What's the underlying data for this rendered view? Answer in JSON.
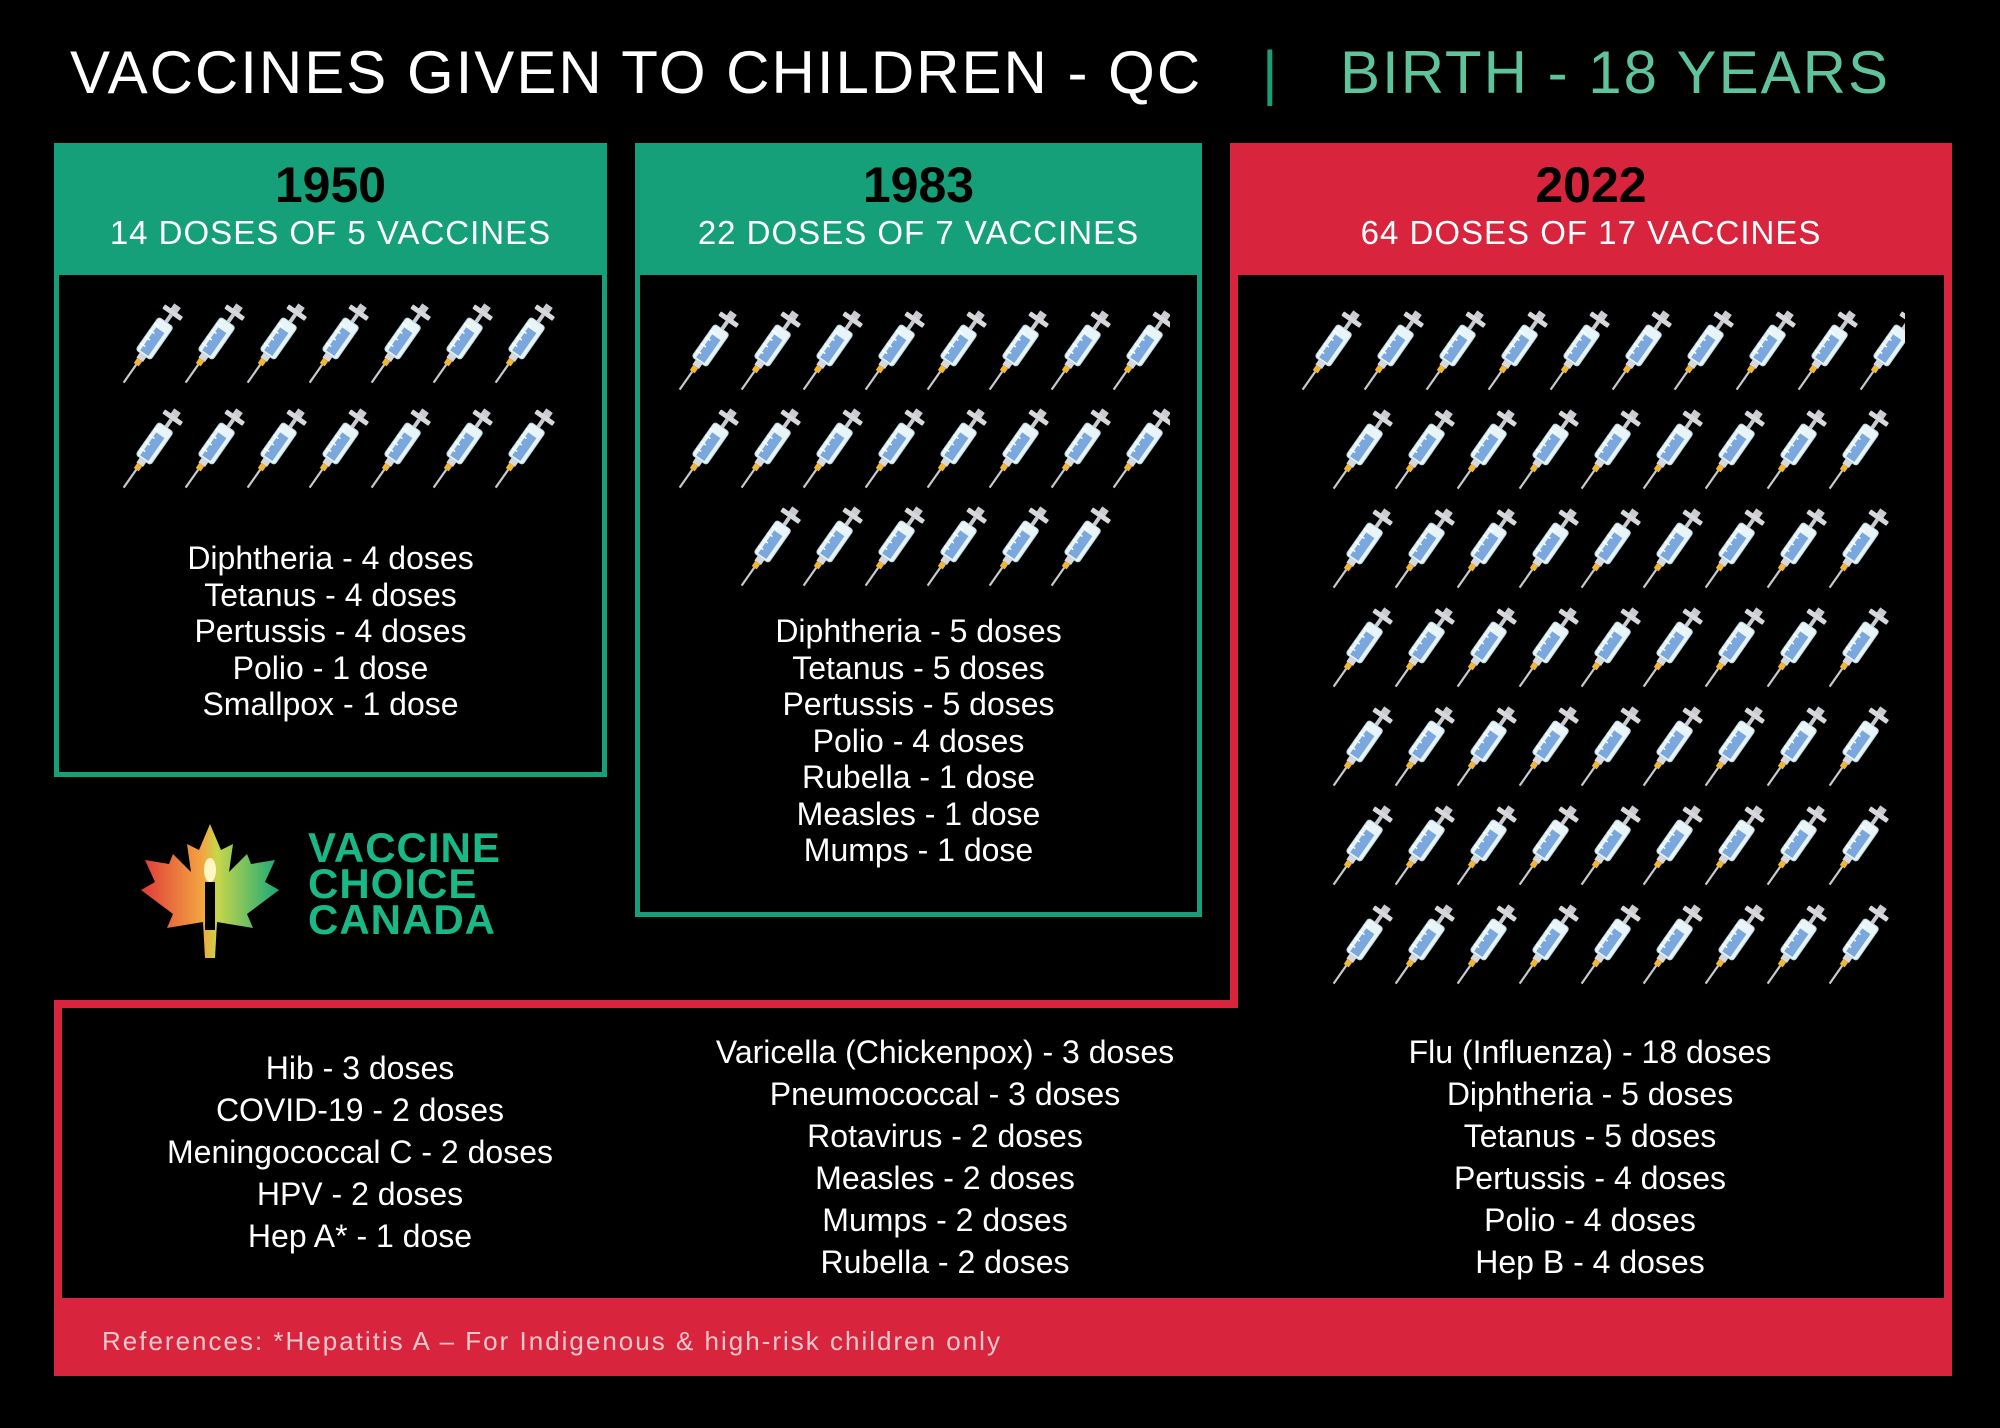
{
  "header": {
    "title": "VACCINES GIVEN TO CHILDREN - QC",
    "separator": "|",
    "subtitle": "BIRTH - 18 YEARS"
  },
  "panels": [
    {
      "year": "1950",
      "summary": "14 DOSES OF 5 VACCINES",
      "syringe_count": 14,
      "vaccines": [
        "Diphtheria - 4 doses",
        "Tetanus - 4 doses",
        "Pertussis - 4 doses",
        "Polio - 1 dose",
        "Smallpox - 1 dose"
      ]
    },
    {
      "year": "1983",
      "summary": "22 DOSES OF 7 VACCINES",
      "syringe_count": 22,
      "vaccines": [
        "Diphtheria - 5 doses",
        "Tetanus - 5 doses",
        "Pertussis - 5 doses",
        "Polio - 4 doses",
        "Rubella - 1 dose",
        "Measles - 1 dose",
        "Mumps - 1 dose"
      ]
    },
    {
      "year": "2022",
      "summary": "64 DOSES OF 17 VACCINES",
      "syringe_count": 64,
      "vaccines_col1": [
        "Hib - 3 doses",
        "COVID-19 - 2 doses",
        "Meningococcal C - 2 doses",
        "HPV - 2 doses",
        "Hep A* - 1 dose"
      ],
      "vaccines_col2": [
        "Varicella (Chickenpox) - 3 doses",
        "Pneumococcal - 3 doses",
        "Rotavirus - 2 doses",
        "Measles - 2 doses",
        "Mumps - 2 doses",
        "Rubella - 2 doses"
      ],
      "vaccines_col3": [
        "Flu (Influenza) - 18 doses",
        "Diphtheria - 5 doses",
        "Tetanus - 5 doses",
        "Pertussis - 4 doses",
        "Polio - 4 doses",
        "Hep B - 4 doses"
      ]
    }
  ],
  "logo": {
    "line1": "VACCINE",
    "line2": "CHOICE",
    "line3": "CANADA",
    "icon": "maple-leaf-candle-icon"
  },
  "footer": {
    "reference": "References: *Hepatitis A – For Indigenous & high-risk children only"
  },
  "colors": {
    "green": "#16a079",
    "red": "#d8243c",
    "background": "#000000",
    "logo_green": "#19b886"
  },
  "icons": {
    "dose": "syringe-icon"
  }
}
